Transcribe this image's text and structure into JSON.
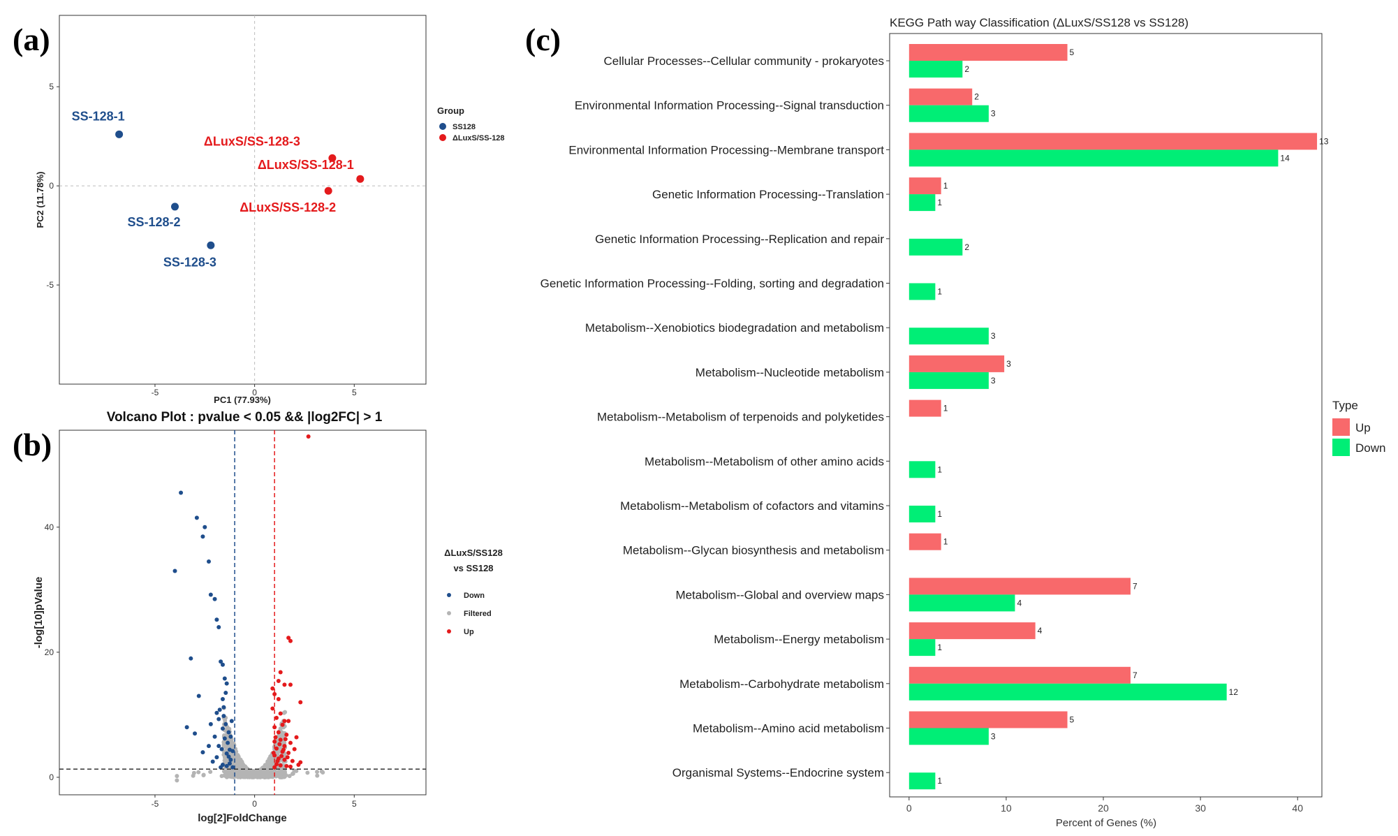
{
  "panels": {
    "a": "(a)",
    "b": "(b)",
    "c": "(c)"
  },
  "colors": {
    "ss128": "#1f4e8c",
    "mutant": "#e41a1c",
    "filtered": "#b4b4b4",
    "up": "#f8696b",
    "down": "#00ee76"
  },
  "pca": {
    "xlabel": "PC1 (77.93%)",
    "ylabel": "PC2 (11.78%)",
    "xlim": [
      -9.8,
      8.6
    ],
    "ylim": [
      -10,
      8.6
    ],
    "xticks": [
      -5,
      0,
      5
    ],
    "yticks": [
      5,
      0,
      -5
    ],
    "legend_title": "Group",
    "legend_items": [
      "SS128",
      "ΔLuxS/SS-128"
    ],
    "points": [
      {
        "label": "SS-128-1",
        "group": "SS128",
        "x": -6.8,
        "y": 2.6
      },
      {
        "label": "SS-128-2",
        "group": "SS128",
        "x": -4.0,
        "y": -1.05
      },
      {
        "label": "SS-128-3",
        "group": "SS128",
        "x": -2.2,
        "y": -3.0
      },
      {
        "label": "ΔLuxS/SS-128-3",
        "group": "ΔLuxS/SS-128",
        "x": 3.9,
        "y": 1.4
      },
      {
        "label": "ΔLuxS/SS-128-1",
        "group": "ΔLuxS/SS-128",
        "x": 5.3,
        "y": 0.35
      },
      {
        "label": "ΔLuxS/SS-128-2",
        "group": "ΔLuxS/SS-128",
        "x": 3.7,
        "y": -0.25
      }
    ]
  },
  "volcano": {
    "title": "Volcano Plot : pvalue < 0.05 && |log2FC| > 1",
    "xlabel": "log[2]FoldChange",
    "ylabel": "-log[10]pValue",
    "xlim": [
      -9.8,
      8.6
    ],
    "ylim": [
      -2.8,
      55.5
    ],
    "xticks": [
      -5,
      0,
      5
    ],
    "yticks": [
      0,
      20,
      40
    ],
    "legend_title_1": "ΔLuxS/SS128",
    "legend_title_2": "vs SS128",
    "legend_items": [
      "Down",
      "Filtered",
      "Up"
    ],
    "fc_threshold": 1,
    "p_threshold": 1.3,
    "down_points": [
      [
        -3.7,
        45.5
      ],
      [
        -2.9,
        41.5
      ],
      [
        -2.5,
        40.0
      ],
      [
        -2.6,
        38.5
      ],
      [
        -2.3,
        34.5
      ],
      [
        -4.0,
        33.0
      ],
      [
        -2.2,
        29.2
      ],
      [
        -2.0,
        28.5
      ],
      [
        -1.9,
        25.2
      ],
      [
        -1.8,
        24.0
      ],
      [
        -3.2,
        19.0
      ],
      [
        -1.7,
        18.5
      ],
      [
        -1.6,
        18.0
      ],
      [
        -2.8,
        13.0
      ],
      [
        -1.5,
        15.8
      ],
      [
        -1.4,
        15.0
      ],
      [
        -1.45,
        13.5
      ],
      [
        -1.6,
        12.5
      ],
      [
        -1.55,
        11.2
      ],
      [
        -3.4,
        8.0
      ],
      [
        -3.0,
        7.0
      ],
      [
        -2.6,
        4.0
      ],
      [
        -2.3,
        5.0
      ],
      [
        -2.1,
        2.5
      ],
      [
        -1.9,
        3.2
      ],
      [
        -1.8,
        9.3
      ],
      [
        -1.6,
        7.8
      ],
      [
        -1.5,
        6.2
      ],
      [
        -1.35,
        5.5
      ],
      [
        -1.25,
        4.4
      ],
      [
        -1.3,
        3.3
      ],
      [
        -1.2,
        2.8
      ],
      [
        -1.6,
        2.0
      ],
      [
        -1.4,
        1.8
      ],
      [
        -1.7,
        1.6
      ],
      [
        -1.9,
        10.3
      ],
      [
        -1.75,
        10.8
      ],
      [
        -1.55,
        9.8
      ],
      [
        -1.45,
        8.5
      ],
      [
        -1.3,
        7.2
      ],
      [
        -1.2,
        6.5
      ],
      [
        -1.15,
        9.0
      ],
      [
        -1.1,
        4.2
      ],
      [
        -2.0,
        6.5
      ],
      [
        -2.2,
        8.5
      ],
      [
        -1.8,
        5.0
      ],
      [
        -1.65,
        4.5
      ],
      [
        -1.4,
        3.8
      ],
      [
        -1.25,
        2.2
      ],
      [
        -1.1,
        1.6
      ]
    ],
    "up_points": [
      [
        2.7,
        54.5
      ],
      [
        1.7,
        22.3
      ],
      [
        1.8,
        21.8
      ],
      [
        1.3,
        16.8
      ],
      [
        1.2,
        15.4
      ],
      [
        1.5,
        14.8
      ],
      [
        1.8,
        14.8
      ],
      [
        0.9,
        14.2
      ],
      [
        1.0,
        13.3
      ],
      [
        1.2,
        12.5
      ],
      [
        2.3,
        12.0
      ],
      [
        0.9,
        11.0
      ],
      [
        1.3,
        10.2
      ],
      [
        1.1,
        9.5
      ],
      [
        1.5,
        9.0
      ],
      [
        1.7,
        9.0
      ],
      [
        1.4,
        8.4
      ],
      [
        1.0,
        8.0
      ],
      [
        1.2,
        7.2
      ],
      [
        1.6,
        6.8
      ],
      [
        2.1,
        6.4
      ],
      [
        1.3,
        6.0
      ],
      [
        1.0,
        5.7
      ],
      [
        1.8,
        5.5
      ],
      [
        1.5,
        5.0
      ],
      [
        1.1,
        4.6
      ],
      [
        1.4,
        4.1
      ],
      [
        1.7,
        3.9
      ],
      [
        1.0,
        3.5
      ],
      [
        1.2,
        3.0
      ],
      [
        1.5,
        2.8
      ],
      [
        1.9,
        2.6
      ],
      [
        2.3,
        2.4
      ],
      [
        1.1,
        2.1
      ],
      [
        1.3,
        1.9
      ],
      [
        1.6,
        1.8
      ],
      [
        1.0,
        1.6
      ],
      [
        1.8,
        1.7
      ],
      [
        1.15,
        2.6
      ],
      [
        1.35,
        3.4
      ],
      [
        1.05,
        6.4
      ],
      [
        1.25,
        5.3
      ],
      [
        1.45,
        4.4
      ],
      [
        1.65,
        3.2
      ],
      [
        0.95,
        3.9
      ],
      [
        1.55,
        6.1
      ],
      [
        2.0,
        4.5
      ],
      [
        2.2,
        2.0
      ]
    ]
  },
  "chart_data": {
    "type": "bar",
    "title": "KEGG Path way Classification (ΔLuxS/SS128 vs SS128)",
    "xlabel": "Percent of Genes (%)",
    "ylabel": "",
    "xlim": [
      -2,
      42.5
    ],
    "xticks": [
      0,
      10,
      20,
      30,
      40
    ],
    "legend_title": "Type",
    "categories": [
      "Cellular Processes--Cellular community - prokaryotes",
      "Environmental Information Processing--Signal transduction",
      "Environmental Information Processing--Membrane transport",
      "Genetic Information Processing--Translation",
      "Genetic Information Processing--Replication and repair",
      "Genetic Information Processing--Folding, sorting and degradation",
      "Metabolism--Xenobiotics biodegradation and metabolism",
      "Metabolism--Nucleotide metabolism",
      "Metabolism--Metabolism of terpenoids and polyketides",
      "Metabolism--Metabolism of other amino acids",
      "Metabolism--Metabolism of cofactors and vitamins",
      "Metabolism--Glycan biosynthesis and metabolism",
      "Metabolism--Global and overview maps",
      "Metabolism--Energy metabolism",
      "Metabolism--Carbohydrate metabolism",
      "Metabolism--Amino acid metabolism",
      "Organismal Systems--Endocrine system"
    ],
    "series": [
      {
        "name": "Up",
        "values": [
          16.3,
          6.5,
          42.0,
          3.3,
          null,
          null,
          null,
          9.8,
          3.3,
          null,
          null,
          3.3,
          22.8,
          13.0,
          22.8,
          16.3,
          null
        ],
        "counts": [
          "5",
          "2",
          "13",
          "1",
          "",
          "",
          "",
          "3",
          "1",
          "",
          "",
          "1",
          "7",
          "4",
          "7",
          "5",
          ""
        ]
      },
      {
        "name": "Down",
        "values": [
          5.5,
          8.2,
          38.0,
          2.7,
          5.5,
          2.7,
          8.2,
          8.2,
          null,
          2.7,
          2.7,
          null,
          10.9,
          2.7,
          32.7,
          8.2,
          2.7
        ],
        "counts": [
          "2",
          "3",
          "14",
          "1",
          "2",
          "1",
          "3",
          "3",
          "",
          "1",
          "1",
          "",
          "4",
          "1",
          "12",
          "3",
          "1"
        ]
      }
    ]
  }
}
